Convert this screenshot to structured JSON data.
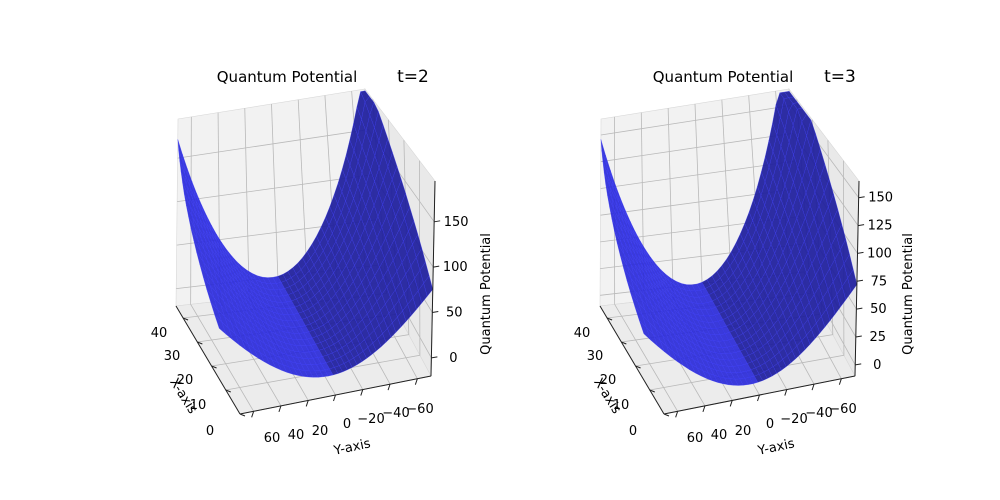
{
  "figure": {
    "background": "#ffffff"
  },
  "chart_data": [
    {
      "type": "surface",
      "title": "Quantum Potential",
      "time_label": "t=2",
      "xlabel": "X-axis",
      "ylabel": "Y-axis",
      "zlabel": "Quantum Potential",
      "x_ticks": [
        "0",
        "10",
        "20",
        "30",
        "40"
      ],
      "y_ticks": [
        "60",
        "40",
        "20",
        "0",
        "−20",
        "−40",
        "−60"
      ],
      "z_ticks": [
        "0",
        "50",
        "100",
        "150"
      ],
      "xlim": [
        0,
        45
      ],
      "ylim": [
        70,
        -70
      ],
      "zlim": [
        -20,
        195
      ],
      "color": "#0000ff",
      "time": 2,
      "surface": {
        "formula": "z = 0.0375 * (y - 2*t)^2 * (0.35 + 0.65*x/45)",
        "note_hidden": false
      }
    },
    {
      "type": "surface",
      "title": "Quantum Potential",
      "time_label": "t=3",
      "xlabel": "X-axis",
      "ylabel": "Y-axis",
      "zlabel": "Quantum Potential",
      "x_ticks": [
        "0",
        "10",
        "20",
        "30",
        "40"
      ],
      "y_ticks": [
        "60",
        "40",
        "20",
        "0",
        "−20",
        "−40",
        "−60"
      ],
      "z_ticks": [
        "0",
        "25",
        "50",
        "75",
        "100",
        "125",
        "150"
      ],
      "xlim": [
        0,
        45
      ],
      "ylim": [
        70,
        -70
      ],
      "zlim": [
        -10,
        165
      ],
      "color": "#0000ff",
      "time": 3
    }
  ]
}
